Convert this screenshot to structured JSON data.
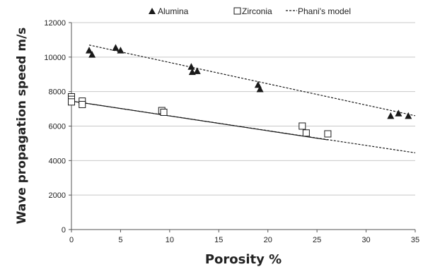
{
  "chart_data": {
    "type": "scatter",
    "xlabel": "Porosity %",
    "ylabel": "Wave propagation speed m/s",
    "xlim": [
      0,
      35
    ],
    "ylim": [
      0,
      12000
    ],
    "x_ticks": [
      0,
      5,
      10,
      15,
      20,
      25,
      30,
      35
    ],
    "y_ticks": [
      0,
      2000,
      4000,
      6000,
      8000,
      10000,
      12000
    ],
    "x_tick_labels": [
      "0",
      "5",
      "10",
      "15",
      "20",
      "25",
      "30",
      "35"
    ],
    "y_tick_labels": [
      "0",
      "2000",
      "4000",
      "6000",
      "8000",
      "10000",
      "12000"
    ],
    "grid": "horizontal",
    "legend_position": "top",
    "series": [
      {
        "name": "Alumina",
        "marker": "filled-triangle",
        "color": "#1a1a1a",
        "points": [
          [
            1.8,
            10400
          ],
          [
            2.1,
            10150
          ],
          [
            4.5,
            10550
          ],
          [
            5.0,
            10400
          ],
          [
            12.2,
            9450
          ],
          [
            12.3,
            9150
          ],
          [
            12.8,
            9200
          ],
          [
            19.0,
            8400
          ],
          [
            19.2,
            8150
          ],
          [
            32.5,
            6600
          ],
          [
            33.3,
            6750
          ],
          [
            34.3,
            6600
          ]
        ]
      },
      {
        "name": "Zirconia",
        "marker": "open-square",
        "color": "#1a1a1a",
        "points": [
          [
            0.0,
            7700
          ],
          [
            0.0,
            7550
          ],
          [
            0.0,
            7400
          ],
          [
            1.1,
            7450
          ],
          [
            1.1,
            7250
          ],
          [
            9.2,
            6900
          ],
          [
            9.4,
            6800
          ],
          [
            23.5,
            6000
          ],
          [
            23.9,
            5600
          ],
          [
            26.1,
            5550
          ]
        ]
      },
      {
        "name": "Phani's model",
        "style": "dashed-line",
        "color": "#1a1a1a",
        "lines": [
          [
            [
              1.8,
              10700
            ],
            [
              35.0,
              6600
            ]
          ],
          [
            [
              0.0,
              7450
            ],
            [
              35.0,
              4450
            ]
          ]
        ]
      }
    ],
    "solid_fit_line": [
      [
        0.0,
        7450
      ],
      [
        26.1,
        5200
      ]
    ]
  }
}
